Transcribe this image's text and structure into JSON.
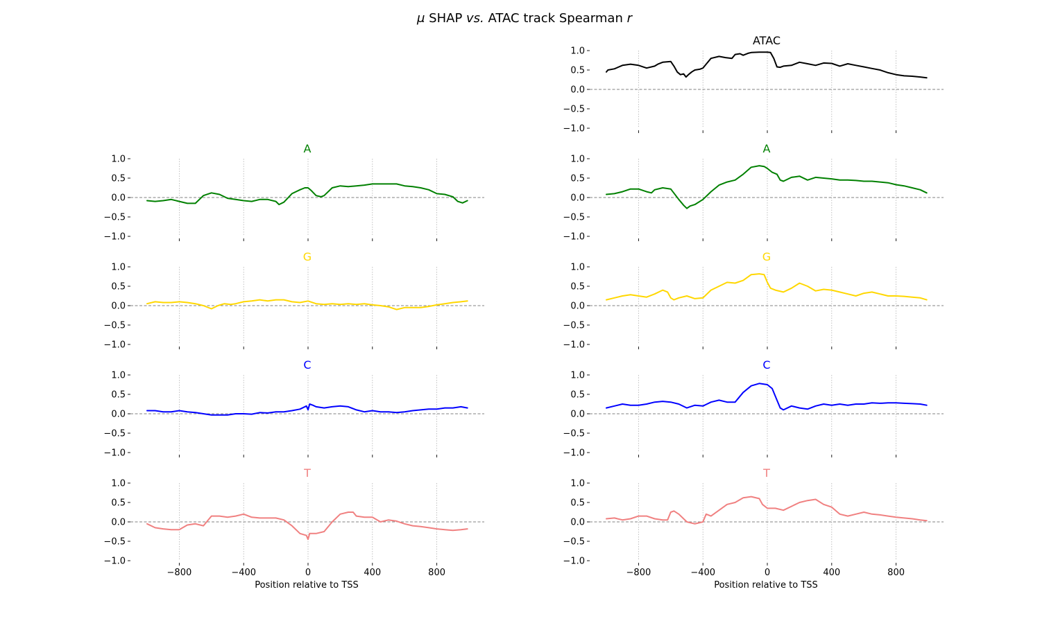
{
  "figure": {
    "title_mu": "μ",
    "title_shap": " SHAP ",
    "title_vs": "vs.",
    "title_mid": " ATAC track Spearman ",
    "title_r": "r"
  },
  "chart_data": [
    {
      "type": "line",
      "panel": "right",
      "row": 0,
      "title": "ATAC",
      "color": "#000000",
      "xlim": [
        -1000,
        1000
      ],
      "ylim": [
        -1.0,
        1.0
      ],
      "xticks": [
        -800,
        -400,
        0,
        400,
        800
      ],
      "yticks": [
        1.0,
        0.5,
        0.0,
        -0.5,
        -1.0
      ],
      "xlabel": "",
      "show_xticklabels": false,
      "x": [
        -1000,
        -990,
        -950,
        -900,
        -850,
        -800,
        -750,
        -700,
        -680,
        -650,
        -600,
        -580,
        -560,
        -540,
        -520,
        -505,
        -490,
        -470,
        -450,
        -420,
        -400,
        -380,
        -350,
        -300,
        -260,
        -220,
        -200,
        -170,
        -150,
        -120,
        -100,
        -50,
        0,
        20,
        40,
        60,
        80,
        100,
        150,
        200,
        250,
        300,
        350,
        400,
        450,
        500,
        550,
        600,
        650,
        700,
        750,
        800,
        850,
        900,
        950,
        990
      ],
      "y": [
        0.45,
        0.5,
        0.53,
        0.62,
        0.65,
        0.62,
        0.55,
        0.6,
        0.65,
        0.7,
        0.72,
        0.6,
        0.45,
        0.38,
        0.4,
        0.32,
        0.38,
        0.45,
        0.5,
        0.52,
        0.55,
        0.65,
        0.8,
        0.85,
        0.82,
        0.8,
        0.9,
        0.92,
        0.88,
        0.93,
        0.95,
        0.96,
        0.96,
        0.95,
        0.8,
        0.58,
        0.57,
        0.6,
        0.62,
        0.7,
        0.66,
        0.62,
        0.68,
        0.67,
        0.6,
        0.66,
        0.62,
        0.58,
        0.54,
        0.5,
        0.43,
        0.38,
        0.35,
        0.34,
        0.32,
        0.3
      ]
    },
    {
      "type": "line",
      "panel": "left",
      "row": 1,
      "title": "A",
      "color": "#008000",
      "xlim": [
        -1000,
        1000
      ],
      "ylim": [
        -1.0,
        1.0
      ],
      "xticks": [
        -800,
        -400,
        0,
        400,
        800
      ],
      "yticks": [
        1.0,
        0.5,
        0.0,
        -0.5,
        -1.0
      ],
      "xlabel": "",
      "show_xticklabels": false,
      "x": [
        -1000,
        -950,
        -900,
        -850,
        -800,
        -750,
        -700,
        -650,
        -600,
        -550,
        -500,
        -450,
        -400,
        -350,
        -300,
        -250,
        -200,
        -180,
        -150,
        -100,
        -50,
        -20,
        0,
        20,
        50,
        80,
        100,
        150,
        200,
        250,
        300,
        350,
        400,
        450,
        500,
        550,
        600,
        650,
        700,
        750,
        800,
        850,
        900,
        930,
        960,
        990
      ],
      "y": [
        -0.08,
        -0.1,
        -0.08,
        -0.05,
        -0.1,
        -0.15,
        -0.15,
        0.05,
        0.12,
        0.08,
        -0.02,
        -0.05,
        -0.08,
        -0.1,
        -0.05,
        -0.05,
        -0.1,
        -0.18,
        -0.12,
        0.1,
        0.2,
        0.25,
        0.25,
        0.18,
        0.05,
        0.02,
        0.05,
        0.25,
        0.3,
        0.28,
        0.3,
        0.32,
        0.35,
        0.35,
        0.35,
        0.35,
        0.3,
        0.28,
        0.25,
        0.2,
        0.1,
        0.08,
        0.02,
        -0.1,
        -0.14,
        -0.08
      ]
    },
    {
      "type": "line",
      "panel": "right",
      "row": 1,
      "title": "A",
      "color": "#008000",
      "xlim": [
        -1000,
        1000
      ],
      "ylim": [
        -1.0,
        1.0
      ],
      "xticks": [
        -800,
        -400,
        0,
        400,
        800
      ],
      "yticks": [
        1.0,
        0.5,
        0.0,
        -0.5,
        -1.0
      ],
      "xlabel": "",
      "show_xticklabels": false,
      "x": [
        -1000,
        -950,
        -900,
        -850,
        -800,
        -750,
        -720,
        -700,
        -650,
        -600,
        -550,
        -520,
        -500,
        -480,
        -450,
        -400,
        -350,
        -300,
        -250,
        -200,
        -150,
        -100,
        -50,
        -20,
        0,
        30,
        60,
        80,
        100,
        150,
        200,
        250,
        300,
        350,
        400,
        450,
        500,
        550,
        600,
        650,
        700,
        750,
        800,
        850,
        900,
        950,
        990
      ],
      "y": [
        0.08,
        0.1,
        0.15,
        0.22,
        0.22,
        0.15,
        0.12,
        0.2,
        0.25,
        0.22,
        -0.05,
        -0.2,
        -0.28,
        -0.22,
        -0.18,
        -0.05,
        0.15,
        0.32,
        0.4,
        0.45,
        0.6,
        0.78,
        0.82,
        0.8,
        0.75,
        0.65,
        0.6,
        0.45,
        0.42,
        0.52,
        0.55,
        0.45,
        0.52,
        0.5,
        0.48,
        0.45,
        0.45,
        0.44,
        0.42,
        0.42,
        0.4,
        0.38,
        0.33,
        0.3,
        0.25,
        0.2,
        0.12
      ]
    },
    {
      "type": "line",
      "panel": "left",
      "row": 2,
      "title": "G",
      "color": "#ffd700",
      "xlim": [
        -1000,
        1000
      ],
      "ylim": [
        -1.0,
        1.0
      ],
      "xticks": [
        -800,
        -400,
        0,
        400,
        800
      ],
      "yticks": [
        1.0,
        0.5,
        0.0,
        -0.5,
        -1.0
      ],
      "xlabel": "",
      "show_xticklabels": false,
      "x": [
        -1000,
        -950,
        -900,
        -850,
        -800,
        -750,
        -700,
        -650,
        -600,
        -560,
        -520,
        -480,
        -450,
        -400,
        -350,
        -300,
        -250,
        -200,
        -150,
        -100,
        -50,
        0,
        50,
        100,
        150,
        200,
        250,
        300,
        350,
        400,
        450,
        500,
        550,
        600,
        650,
        700,
        750,
        800,
        850,
        900,
        950,
        990
      ],
      "y": [
        0.05,
        0.1,
        0.08,
        0.08,
        0.1,
        0.08,
        0.05,
        0.0,
        -0.08,
        0.0,
        0.05,
        0.03,
        0.05,
        0.1,
        0.12,
        0.15,
        0.12,
        0.15,
        0.15,
        0.1,
        0.08,
        0.12,
        0.05,
        0.03,
        0.05,
        0.03,
        0.05,
        0.03,
        0.05,
        0.02,
        0.0,
        -0.03,
        -0.1,
        -0.05,
        -0.05,
        -0.05,
        -0.02,
        0.02,
        0.05,
        0.08,
        0.1,
        0.12
      ]
    },
    {
      "type": "line",
      "panel": "right",
      "row": 2,
      "title": "G",
      "color": "#ffd700",
      "xlim": [
        -1000,
        1000
      ],
      "ylim": [
        -1.0,
        1.0
      ],
      "xticks": [
        -800,
        -400,
        0,
        400,
        800
      ],
      "yticks": [
        1.0,
        0.5,
        0.0,
        -0.5,
        -1.0
      ],
      "xlabel": "",
      "show_xticklabels": false,
      "x": [
        -1000,
        -950,
        -900,
        -850,
        -800,
        -750,
        -700,
        -650,
        -620,
        -600,
        -580,
        -550,
        -500,
        -450,
        -400,
        -350,
        -300,
        -250,
        -200,
        -150,
        -100,
        -50,
        -20,
        0,
        20,
        50,
        100,
        150,
        200,
        250,
        300,
        350,
        400,
        450,
        500,
        550,
        600,
        650,
        700,
        750,
        800,
        850,
        900,
        950,
        990
      ],
      "y": [
        0.15,
        0.2,
        0.25,
        0.28,
        0.25,
        0.22,
        0.3,
        0.4,
        0.35,
        0.2,
        0.15,
        0.2,
        0.25,
        0.18,
        0.2,
        0.4,
        0.5,
        0.6,
        0.58,
        0.65,
        0.8,
        0.82,
        0.8,
        0.6,
        0.45,
        0.4,
        0.35,
        0.45,
        0.58,
        0.5,
        0.38,
        0.42,
        0.4,
        0.35,
        0.3,
        0.25,
        0.32,
        0.35,
        0.3,
        0.25,
        0.25,
        0.24,
        0.22,
        0.2,
        0.15
      ]
    },
    {
      "type": "line",
      "panel": "left",
      "row": 3,
      "title": "C",
      "color": "#0000ff",
      "xlim": [
        -1000,
        1000
      ],
      "ylim": [
        -1.0,
        1.0
      ],
      "xticks": [
        -800,
        -400,
        0,
        400,
        800
      ],
      "yticks": [
        1.0,
        0.5,
        0.0,
        -0.5,
        -1.0
      ],
      "xlabel": "",
      "show_xticklabels": false,
      "x": [
        -1000,
        -950,
        -900,
        -850,
        -800,
        -750,
        -700,
        -650,
        -600,
        -550,
        -500,
        -450,
        -400,
        -350,
        -300,
        -250,
        -200,
        -150,
        -100,
        -50,
        -10,
        0,
        10,
        30,
        50,
        100,
        150,
        200,
        250,
        300,
        350,
        400,
        450,
        500,
        550,
        600,
        650,
        700,
        750,
        800,
        850,
        900,
        950,
        990
      ],
      "y": [
        0.08,
        0.08,
        0.05,
        0.05,
        0.08,
        0.05,
        0.03,
        0.0,
        -0.03,
        -0.03,
        -0.03,
        0.0,
        0.0,
        -0.01,
        0.03,
        0.02,
        0.05,
        0.05,
        0.08,
        0.12,
        0.2,
        0.1,
        0.25,
        0.22,
        0.18,
        0.15,
        0.18,
        0.2,
        0.18,
        0.1,
        0.05,
        0.08,
        0.05,
        0.05,
        0.03,
        0.05,
        0.08,
        0.1,
        0.12,
        0.12,
        0.15,
        0.15,
        0.18,
        0.15
      ]
    },
    {
      "type": "line",
      "panel": "right",
      "row": 3,
      "title": "C",
      "color": "#0000ff",
      "xlim": [
        -1000,
        1000
      ],
      "ylim": [
        -1.0,
        1.0
      ],
      "xticks": [
        -800,
        -400,
        0,
        400,
        800
      ],
      "yticks": [
        1.0,
        0.5,
        0.0,
        -0.5,
        -1.0
      ],
      "xlabel": "",
      "show_xticklabels": false,
      "x": [
        -1000,
        -950,
        -900,
        -850,
        -800,
        -750,
        -700,
        -650,
        -600,
        -550,
        -500,
        -450,
        -400,
        -350,
        -300,
        -250,
        -200,
        -150,
        -100,
        -50,
        0,
        30,
        60,
        80,
        100,
        150,
        200,
        250,
        300,
        350,
        400,
        450,
        500,
        550,
        600,
        650,
        700,
        750,
        800,
        850,
        900,
        950,
        990
      ],
      "y": [
        0.15,
        0.2,
        0.25,
        0.22,
        0.22,
        0.25,
        0.3,
        0.32,
        0.3,
        0.25,
        0.15,
        0.22,
        0.2,
        0.3,
        0.35,
        0.3,
        0.3,
        0.55,
        0.72,
        0.78,
        0.75,
        0.65,
        0.35,
        0.15,
        0.1,
        0.2,
        0.15,
        0.12,
        0.2,
        0.25,
        0.22,
        0.25,
        0.22,
        0.25,
        0.25,
        0.28,
        0.27,
        0.28,
        0.28,
        0.27,
        0.26,
        0.25,
        0.22
      ]
    },
    {
      "type": "line",
      "panel": "left",
      "row": 4,
      "title": "T",
      "color": "#f08080",
      "xlim": [
        -1000,
        1000
      ],
      "ylim": [
        -1.0,
        1.0
      ],
      "xticks": [
        -800,
        -400,
        0,
        400,
        800
      ],
      "yticks": [
        1.0,
        0.5,
        0.0,
        -0.5,
        -1.0
      ],
      "xlabel": "Position relative to TSS",
      "show_xticklabels": true,
      "x": [
        -1000,
        -950,
        -900,
        -850,
        -800,
        -750,
        -700,
        -650,
        -600,
        -550,
        -500,
        -450,
        -400,
        -350,
        -300,
        -250,
        -200,
        -150,
        -100,
        -50,
        -10,
        0,
        10,
        50,
        100,
        150,
        200,
        250,
        280,
        300,
        350,
        400,
        450,
        500,
        550,
        600,
        650,
        700,
        750,
        800,
        850,
        900,
        950,
        990
      ],
      "y": [
        -0.05,
        -0.15,
        -0.18,
        -0.2,
        -0.2,
        -0.08,
        -0.05,
        -0.1,
        0.15,
        0.15,
        0.12,
        0.15,
        0.2,
        0.12,
        0.1,
        0.1,
        0.1,
        0.05,
        -0.1,
        -0.3,
        -0.35,
        -0.45,
        -0.3,
        -0.3,
        -0.25,
        0.0,
        0.2,
        0.25,
        0.25,
        0.15,
        0.12,
        0.12,
        0.0,
        0.05,
        0.02,
        -0.05,
        -0.1,
        -0.12,
        -0.15,
        -0.18,
        -0.2,
        -0.22,
        -0.2,
        -0.18
      ]
    },
    {
      "type": "line",
      "panel": "right",
      "row": 4,
      "title": "T",
      "color": "#f08080",
      "xlim": [
        -1000,
        1000
      ],
      "ylim": [
        -1.0,
        1.0
      ],
      "xticks": [
        -800,
        -400,
        0,
        400,
        800
      ],
      "yticks": [
        1.0,
        0.5,
        0.0,
        -0.5,
        -1.0
      ],
      "xlabel": "Position relative to TSS",
      "show_xticklabels": true,
      "x": [
        -1000,
        -950,
        -900,
        -850,
        -800,
        -750,
        -700,
        -650,
        -620,
        -600,
        -580,
        -550,
        -500,
        -450,
        -400,
        -380,
        -350,
        -300,
        -250,
        -200,
        -150,
        -100,
        -50,
        -30,
        0,
        50,
        100,
        150,
        200,
        250,
        300,
        350,
        400,
        450,
        500,
        550,
        600,
        650,
        700,
        750,
        800,
        850,
        900,
        950,
        990
      ],
      "y": [
        0.08,
        0.1,
        0.05,
        0.08,
        0.15,
        0.15,
        0.08,
        0.05,
        0.05,
        0.25,
        0.28,
        0.2,
        0.0,
        -0.05,
        0.0,
        0.2,
        0.15,
        0.3,
        0.45,
        0.5,
        0.62,
        0.65,
        0.6,
        0.45,
        0.35,
        0.35,
        0.3,
        0.4,
        0.5,
        0.55,
        0.58,
        0.45,
        0.38,
        0.2,
        0.15,
        0.2,
        0.25,
        0.2,
        0.18,
        0.15,
        0.12,
        0.1,
        0.08,
        0.05,
        0.03
      ]
    }
  ]
}
